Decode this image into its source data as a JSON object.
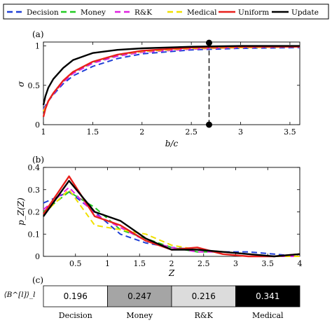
{
  "legend": [
    {
      "name": "Decision",
      "color": "#1f3fd6",
      "dash": "8,5"
    },
    {
      "name": "Money",
      "color": "#22cc22",
      "dash": "8,5"
    },
    {
      "name": "R&K",
      "color": "#e020e0",
      "dash": "8,5"
    },
    {
      "name": "Medical",
      "color": "#f0e000",
      "dash": "8,5"
    },
    {
      "name": "Uniform",
      "color": "#e8201c",
      "dash": ""
    },
    {
      "name": "Update",
      "color": "#000000",
      "dash": ""
    }
  ],
  "chart_data": [
    {
      "type": "line",
      "panel_label": "(a)",
      "xlabel": "b/c",
      "ylabel": "σ",
      "xlim": [
        1,
        3.6
      ],
      "ylim": [
        0,
        1.05
      ],
      "xticks": [
        1,
        1.5,
        2,
        2.5,
        3,
        3.5
      ],
      "xtick_labels": [
        "1",
        "1.5",
        "2",
        "2.5",
        "3",
        "3.5"
      ],
      "yticks": [
        0,
        0.5,
        1
      ],
      "ytick_labels": [
        "0",
        "0.5",
        "1"
      ],
      "marker_line": {
        "x": 2.68,
        "y_top": 1.04,
        "y_bottom": 0.0
      },
      "x": [
        1.0,
        1.02,
        1.05,
        1.1,
        1.2,
        1.3,
        1.5,
        1.75,
        2.0,
        2.5,
        3.0,
        3.6
      ],
      "series": [
        {
          "name": "Decision",
          "values": [
            0.2,
            0.24,
            0.3,
            0.38,
            0.52,
            0.62,
            0.74,
            0.84,
            0.9,
            0.95,
            0.97,
            0.98
          ]
        },
        {
          "name": "Money",
          "values": [
            0.17,
            0.22,
            0.3,
            0.39,
            0.55,
            0.66,
            0.79,
            0.88,
            0.93,
            0.97,
            0.98,
            0.99
          ]
        },
        {
          "name": "R&K",
          "values": [
            0.18,
            0.23,
            0.3,
            0.39,
            0.54,
            0.65,
            0.78,
            0.87,
            0.92,
            0.96,
            0.98,
            0.99
          ]
        },
        {
          "name": "Medical",
          "values": [
            0.17,
            0.22,
            0.3,
            0.4,
            0.56,
            0.67,
            0.8,
            0.89,
            0.93,
            0.97,
            0.98,
            0.99
          ]
        },
        {
          "name": "Uniform",
          "values": [
            0.1,
            0.2,
            0.3,
            0.4,
            0.56,
            0.67,
            0.8,
            0.89,
            0.94,
            0.98,
            0.99,
            0.99
          ]
        },
        {
          "name": "Update",
          "values": [
            0.25,
            0.36,
            0.47,
            0.58,
            0.72,
            0.82,
            0.91,
            0.95,
            0.97,
            0.99,
            1.0,
            1.0
          ]
        }
      ]
    },
    {
      "type": "line",
      "panel_label": "(b)",
      "xlabel": "Z",
      "ylabel": "p_Z(Z)",
      "xlim": [
        0,
        4
      ],
      "ylim": [
        0,
        0.4
      ],
      "xticks": [
        0.5,
        1,
        1.5,
        2,
        2.5,
        3,
        3.5,
        4
      ],
      "xtick_labels": [
        "0.5",
        "1",
        "1.5",
        "2",
        "2.5",
        "3",
        "3.5",
        "4"
      ],
      "yticks": [
        0,
        0.1,
        0.2,
        0.3,
        0.4
      ],
      "ytick_labels": [
        "0",
        "0.1",
        "0.2",
        "0.3",
        "0.4"
      ],
      "x": [
        0.0,
        0.4,
        0.8,
        1.2,
        1.6,
        2.0,
        2.4,
        2.8,
        3.2,
        3.6,
        4.0
      ],
      "series": [
        {
          "name": "Decision",
          "values": [
            0.24,
            0.29,
            0.2,
            0.1,
            0.06,
            0.04,
            0.03,
            0.02,
            0.02,
            0.01,
            0.0
          ]
        },
        {
          "name": "Money",
          "values": [
            0.2,
            0.29,
            0.22,
            0.12,
            0.08,
            0.04,
            0.02,
            0.02,
            0.01,
            0.0,
            0.0
          ]
        },
        {
          "name": "R&K",
          "values": [
            0.21,
            0.31,
            0.19,
            0.13,
            0.07,
            0.04,
            0.02,
            0.02,
            0.01,
            0.0,
            0.0
          ]
        },
        {
          "name": "Medical",
          "values": [
            0.19,
            0.3,
            0.14,
            0.12,
            0.1,
            0.05,
            0.03,
            0.02,
            0.01,
            0.0,
            0.0
          ]
        },
        {
          "name": "Uniform",
          "values": [
            0.19,
            0.36,
            0.18,
            0.14,
            0.07,
            0.03,
            0.04,
            0.01,
            0.0,
            0.0,
            0.01
          ]
        },
        {
          "name": "Update",
          "values": [
            0.18,
            0.34,
            0.2,
            0.16,
            0.08,
            0.03,
            0.03,
            0.02,
            0.01,
            0.0,
            0.01
          ]
        }
      ]
    },
    {
      "type": "heatmap",
      "panel_label": "(c)",
      "ylabel": "⟨B^[l]⟩_l",
      "categories": [
        "Decision",
        "Money",
        "R&K",
        "Medical"
      ],
      "values": [
        0.196,
        0.247,
        0.216,
        0.341
      ],
      "value_labels": [
        "0.196",
        "0.247",
        "0.216",
        "0.341"
      ]
    }
  ]
}
